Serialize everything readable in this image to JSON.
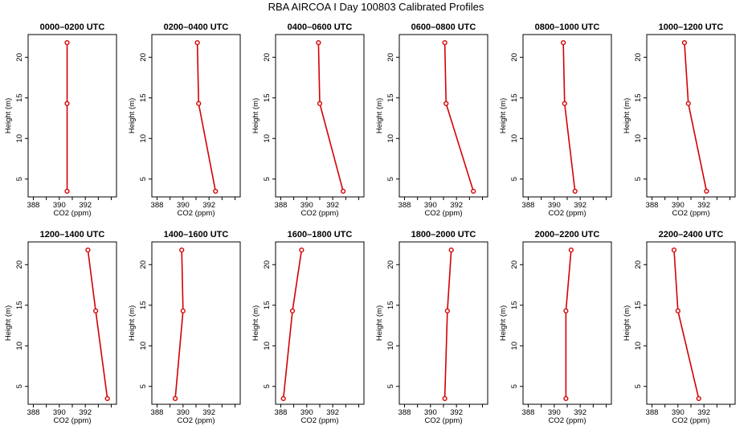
{
  "title": "RBA AIRCOA I  Day 100803  Calibrated Profiles",
  "colors": {
    "series": "#d40000",
    "axis": "#000000",
    "background": "#ffffff"
  },
  "chart_data": {
    "type": "line",
    "xlabel": "CO2 (ppm)",
    "ylabel": "Height (m)",
    "xlim": [
      387.6,
      394.4
    ],
    "ylim": [
      2.8,
      22.8
    ],
    "xticks": [
      388,
      389,
      390,
      391,
      392,
      393,
      394
    ],
    "xticklabels": [
      "388",
      "",
      "390",
      "",
      "392",
      "",
      ""
    ],
    "yticks": [
      5,
      10,
      15,
      20
    ],
    "yticklabels": [
      "5",
      "10",
      "15",
      "20"
    ],
    "heights": [
      3.5,
      14.3,
      21.8
    ],
    "panels": [
      {
        "title": "0000–0200 UTC",
        "co2": [
          390.6,
          390.6,
          390.6
        ]
      },
      {
        "title": "0200–0400 UTC",
        "co2": [
          392.5,
          391.2,
          391.1
        ]
      },
      {
        "title": "0400–0600 UTC",
        "co2": [
          392.8,
          391.0,
          390.9
        ]
      },
      {
        "title": "0600–0800 UTC",
        "co2": [
          393.3,
          391.2,
          391.1
        ]
      },
      {
        "title": "0800–1000 UTC",
        "co2": [
          391.6,
          390.8,
          390.7
        ]
      },
      {
        "title": "1000–1200 UTC",
        "co2": [
          392.2,
          390.8,
          390.5
        ]
      },
      {
        "title": "1200–1400 UTC",
        "co2": [
          393.7,
          392.8,
          392.2
        ]
      },
      {
        "title": "1400–1600 UTC",
        "co2": [
          389.4,
          390.0,
          389.9
        ]
      },
      {
        "title": "1600–1800 UTC",
        "co2": [
          388.2,
          388.9,
          389.6
        ]
      },
      {
        "title": "1800–2000 UTC",
        "co2": [
          391.1,
          391.3,
          391.6
        ]
      },
      {
        "title": "2000–2200 UTC",
        "co2": [
          390.9,
          390.9,
          391.3
        ]
      },
      {
        "title": "2200–2400 UTC",
        "co2": [
          391.6,
          390.0,
          389.7
        ]
      }
    ]
  }
}
